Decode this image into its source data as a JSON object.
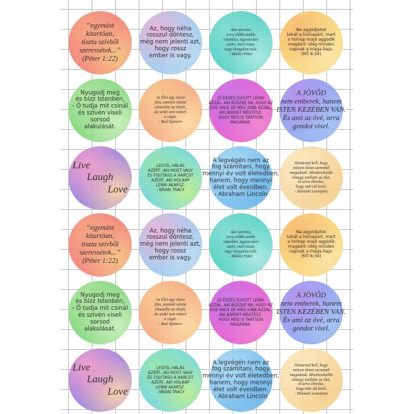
{
  "stickers": [
    {
      "style": "serif",
      "colors": [
        "#f27f78",
        "#f6a07a",
        "#f7c27e"
      ],
      "lines": [
        "“egymást",
        "kitartóan,",
        "tiszta szívből",
        "szeressétek...”",
        "(Péter 1:22)"
      ]
    },
    {
      "style": "sans",
      "colors": [
        "#9fc8ee",
        "#e8b0d6",
        "#b9d9f0"
      ],
      "lines": [
        "Az, hogy néha",
        "rosszul döntesz,",
        "még nem jelenti azt,",
        "hogy rossz",
        "ember is vagy."
      ]
    },
    {
      "style": "script",
      "colors": [
        "#4fd0c4",
        "#7ddbd0",
        "#a8e8de"
      ],
      "lines": [
        "Akit szeretsz,",
        "arra előbb-utóbb",
        "rátalálsz, egyszerűen",
        "azért, mert össze",
        "vagy hangolva vele.",
        "- Müller Péter"
      ]
    },
    {
      "style": "small",
      "colors": [
        "#f9d678",
        "#f7b86a",
        "#fbe3a0"
      ],
      "lines": [
        "Ne aggódjatok",
        "tehát a holnapért, mert",
        "a holnap majd aggódik",
        "magáért: elég minden",
        "napnak a maga baja.",
        "(MT 6:34)"
      ]
    },
    {
      "style": "sans",
      "colors": [
        "#7fd77a",
        "#a9e39a",
        "#c8efb8"
      ],
      "lines": [
        "Nyugodj meg",
        "és bízz Istenben,",
        "- Ő tudja mit csinál",
        "és szívén viseli",
        "sorsod",
        "alakulását."
      ]
    },
    {
      "style": "script",
      "colors": [
        "#f5a77d",
        "#f8c58a",
        "#fbd9a0"
      ],
      "lines": [
        "Az Élet egy olyan",
        "film, aminek valaki",
        "elmesélte az elejét,",
        "de senki sem ismeri",
        "a végét.",
        "- Bud Spencer"
      ]
    },
    {
      "style": "caps",
      "colors": [
        "#e25bd3",
        "#c96ee6",
        "#f07fcf"
      ],
      "lines": [
        "Jó érzés együtt lenni",
        "azzal, aki büszke rá, hogy az",
        "övé vagy. De még jobb azzal,",
        "aki bármit megtesz,",
        "hogy meg is tartson",
        "magának."
      ]
    },
    {
      "style": "serif",
      "colors": [
        "#8fa6f0",
        "#b28cec",
        "#9fc1f3"
      ],
      "lines": [
        "A JÖVŐD",
        "nem emberek, hanem",
        "ISTEN KEZÉBEN VAN.",
        "És ami az övé, arra",
        "gondot visel."
      ]
    },
    {
      "style": "big",
      "colors": [
        "#9a7fe0",
        "#f29ac8",
        "#f9d0a6"
      ],
      "lines": [
        "Live",
        "Laugh",
        "Love"
      ]
    },
    {
      "style": "caps",
      "colors": [
        "#6fd6e0",
        "#8fe3a8",
        "#b9ec8e"
      ],
      "lines": [
        "Legyél hálás",
        "azért, aki most vagy",
        "és folytasd a harcot",
        "azért, aki holnap",
        "lenni akarsz.",
        "- Brian Tracy"
      ]
    },
    {
      "style": "sans",
      "colors": [
        "#7fc3ef",
        "#a3d6f4",
        "#6bb5ea"
      ],
      "lines": [
        "A legvégén nem az",
        "fog számítani, hogy",
        "mennyi év volt életedben,",
        "hanem, hogy mennyi",
        "élet volt éveidben.",
        "- Abraham Lincoln"
      ]
    },
    {
      "style": "script",
      "colors": [
        "#f8d9a0",
        "#fbe6bb",
        "#f6cf8c"
      ],
      "lines": [
        "Döntened kell, hogy",
        "milyen életet szeretnél",
        "magadnak. Mindenekelőtt",
        "elmegy mellette az élet,",
        "és arra ébredsz,",
        "hogy már túl késő.",
        "- Hannah Loonijens"
      ]
    }
  ],
  "grid_order": [
    0,
    1,
    2,
    3,
    4,
    5,
    6,
    7,
    8,
    9,
    10,
    11,
    0,
    1,
    2,
    3,
    4,
    5,
    6,
    7,
    8,
    9,
    10,
    11
  ]
}
